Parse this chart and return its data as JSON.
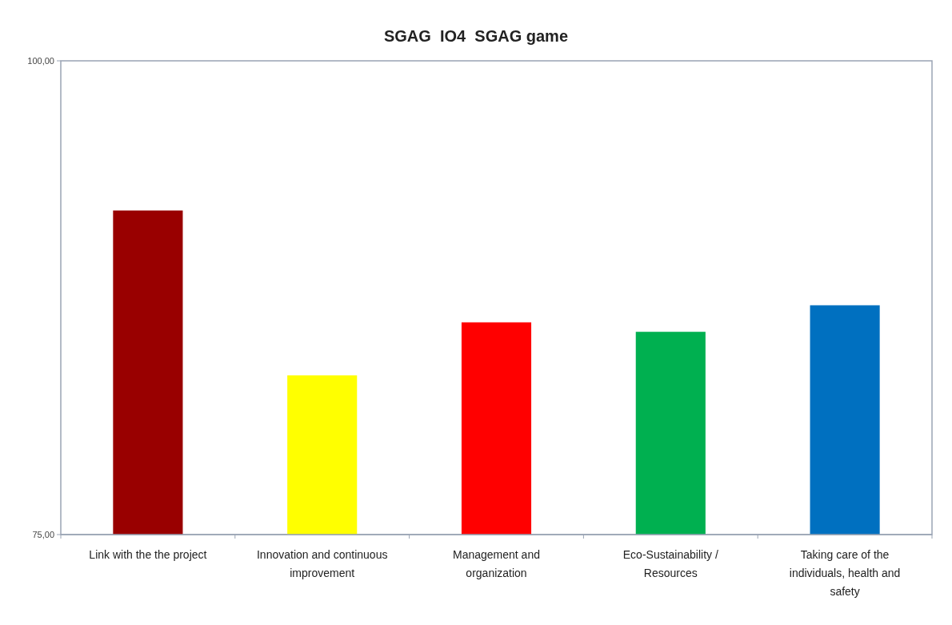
{
  "chart_data": {
    "type": "bar",
    "title": "SGAG  IO4  SGAG game",
    "categories": [
      "Link with the the project",
      "Innovation and continuous improvement",
      "Management and organization",
      "Eco-Sustainability / Resources",
      "Taking care of the individuals, health and safety"
    ],
    "values": [
      92.1,
      83.4,
      86.2,
      85.7,
      87.1
    ],
    "colors": [
      "#990000",
      "#ffff00",
      "#ff0000",
      "#00b050",
      "#0070c0"
    ],
    "ylim": [
      75,
      100
    ],
    "yticks": [
      {
        "value": 75,
        "label": "75,00"
      },
      {
        "value": 100,
        "label": "100,00"
      }
    ],
    "grid": false
  }
}
